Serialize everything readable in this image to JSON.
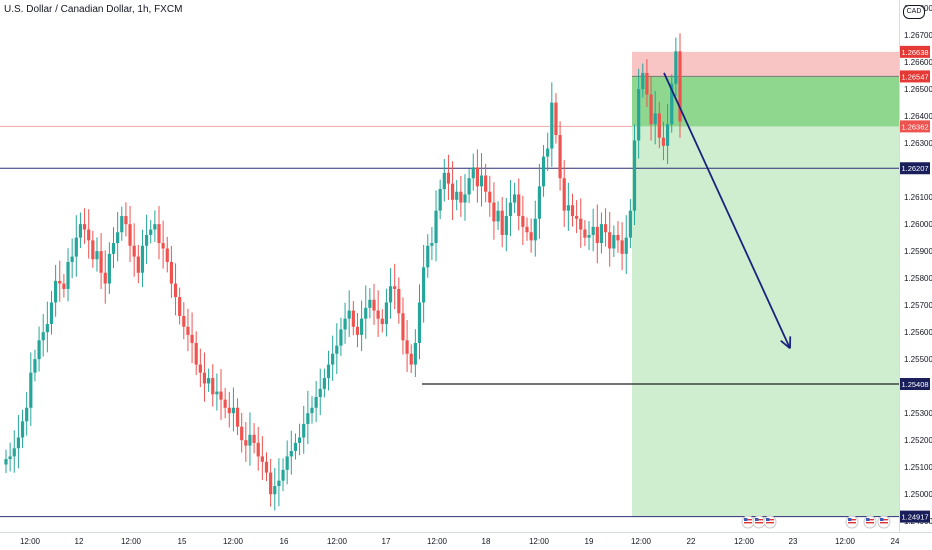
{
  "header": {
    "title": "U.S. Dollar / Canadian Dollar, 1h, FXCM",
    "currency": "CAD"
  },
  "colors": {
    "up": "#26a69a",
    "down": "#ef5350",
    "target_fill": "#cfeecf",
    "profit_fill": "#8fd68f",
    "stop_fill": "#f9c4c4",
    "hline": "#2e2e7a",
    "arrow": "#1a237e"
  },
  "chart_data": {
    "type": "candlestick",
    "title": "U.S. Dollar / Canadian Dollar, 1h, FXCM",
    "xlabel": "",
    "ylabel": "",
    "ylim": [
      1.2486,
      1.2683
    ],
    "y_ticks": [
      "1.26800",
      "1.26700",
      "1.26600",
      "1.26500",
      "1.26400",
      "1.26300",
      "1.26100",
      "1.26000",
      "1.25900",
      "1.25800",
      "1.25700",
      "1.25600",
      "1.25500",
      "1.25300",
      "1.25200",
      "1.25100",
      "1.25000",
      "1.24900"
    ],
    "x_ticks": [
      "12:00",
      "12",
      "12:00",
      "15",
      "12:00",
      "16",
      "12:00",
      "17",
      "12:00",
      "18",
      "12:00",
      "19",
      "12:00",
      "22",
      "12:00",
      "23",
      "12:00",
      "24"
    ],
    "price_labels": [
      {
        "value": "1.26638",
        "kind": "stop"
      },
      {
        "value": "1.26547",
        "kind": "entry"
      },
      {
        "value": "1.26362",
        "kind": "stop2"
      },
      {
        "value": "1.26207",
        "kind": "level"
      },
      {
        "value": "1.25408",
        "kind": "level"
      },
      {
        "value": "1.24917",
        "kind": "level"
      }
    ],
    "horizontal_levels": [
      1.26207,
      1.25408,
      1.24917
    ],
    "position": {
      "type": "short",
      "entry": 1.26547,
      "stop": 1.26638,
      "partial": 1.26362,
      "target": 1.24917
    },
    "forecast_arrow": {
      "from": 1.2656,
      "to": 1.2554
    },
    "close_path": [
      1.2513,
      1.2514,
      1.2517,
      1.2521,
      1.2527,
      1.2532,
      1.2545,
      1.255,
      1.2557,
      1.256,
      1.2563,
      1.2571,
      1.2579,
      1.2578,
      1.2576,
      1.2586,
      1.2588,
      1.2595,
      1.26,
      1.2598,
      1.2594,
      1.2587,
      1.259,
      1.2582,
      1.2578,
      1.2589,
      1.2593,
      1.2597,
      1.2603,
      1.26,
      1.2592,
      1.2588,
      1.2582,
      1.2592,
      1.2596,
      1.2598,
      1.26,
      1.2593,
      1.2591,
      1.2586,
      1.2578,
      1.2573,
      1.2566,
      1.2562,
      1.2559,
      1.2556,
      1.2548,
      1.2545,
      1.2541,
      1.2543,
      1.2537,
      1.2538,
      1.2535,
      1.2532,
      1.253,
      1.2532,
      1.2525,
      1.252,
      1.2518,
      1.2522,
      1.2519,
      1.2514,
      1.2512,
      1.2508,
      1.25,
      1.2503,
      1.2505,
      1.2509,
      1.2514,
      1.2516,
      1.2519,
      1.2521,
      1.2526,
      1.253,
      1.2532,
      1.2536,
      1.2539,
      1.2543,
      1.2548,
      1.2552,
      1.2555,
      1.2561,
      1.2565,
      1.2568,
      1.2562,
      1.2559,
      1.2565,
      1.2569,
      1.2572,
      1.2568,
      1.2565,
      1.2563,
      1.2571,
      1.2577,
      1.2576,
      1.2567,
      1.2557,
      1.2552,
      1.2548,
      1.2556,
      1.2571,
      1.2584,
      1.2592,
      1.2593,
      1.2605,
      1.2613,
      1.2619,
      1.2615,
      1.2609,
      1.2612,
      1.2608,
      1.2611,
      1.2617,
      1.2621,
      1.2614,
      1.2618,
      1.2612,
      1.2608,
      1.2601,
      1.2605,
      1.2596,
      1.2603,
      1.2608,
      1.2611,
      1.2603,
      1.2599,
      1.2597,
      1.2594,
      1.2602,
      1.2614,
      1.2625,
      1.2628,
      1.2645,
      1.2633,
      1.2617,
      1.2605,
      1.2607,
      1.2603,
      1.2602,
      1.2598,
      1.2595,
      1.2596,
      1.2599,
      1.2593,
      1.26,
      1.2597,
      1.2591,
      1.2596,
      1.2594,
      1.2589,
      1.2595,
      1.2605,
      1.2631,
      1.265,
      1.2656,
      1.2648,
      1.2637,
      1.2641,
      1.2632,
      1.2629,
      1.2637,
      1.2652,
      1.2664,
      1.2638
    ],
    "annotations": [
      {
        "text": "event-icons",
        "count": 3,
        "position": "bottom near 22/12:00"
      },
      {
        "text": "event-icons",
        "count": 3,
        "position": "bottom near 23 12:00"
      }
    ],
    "grid": false
  }
}
